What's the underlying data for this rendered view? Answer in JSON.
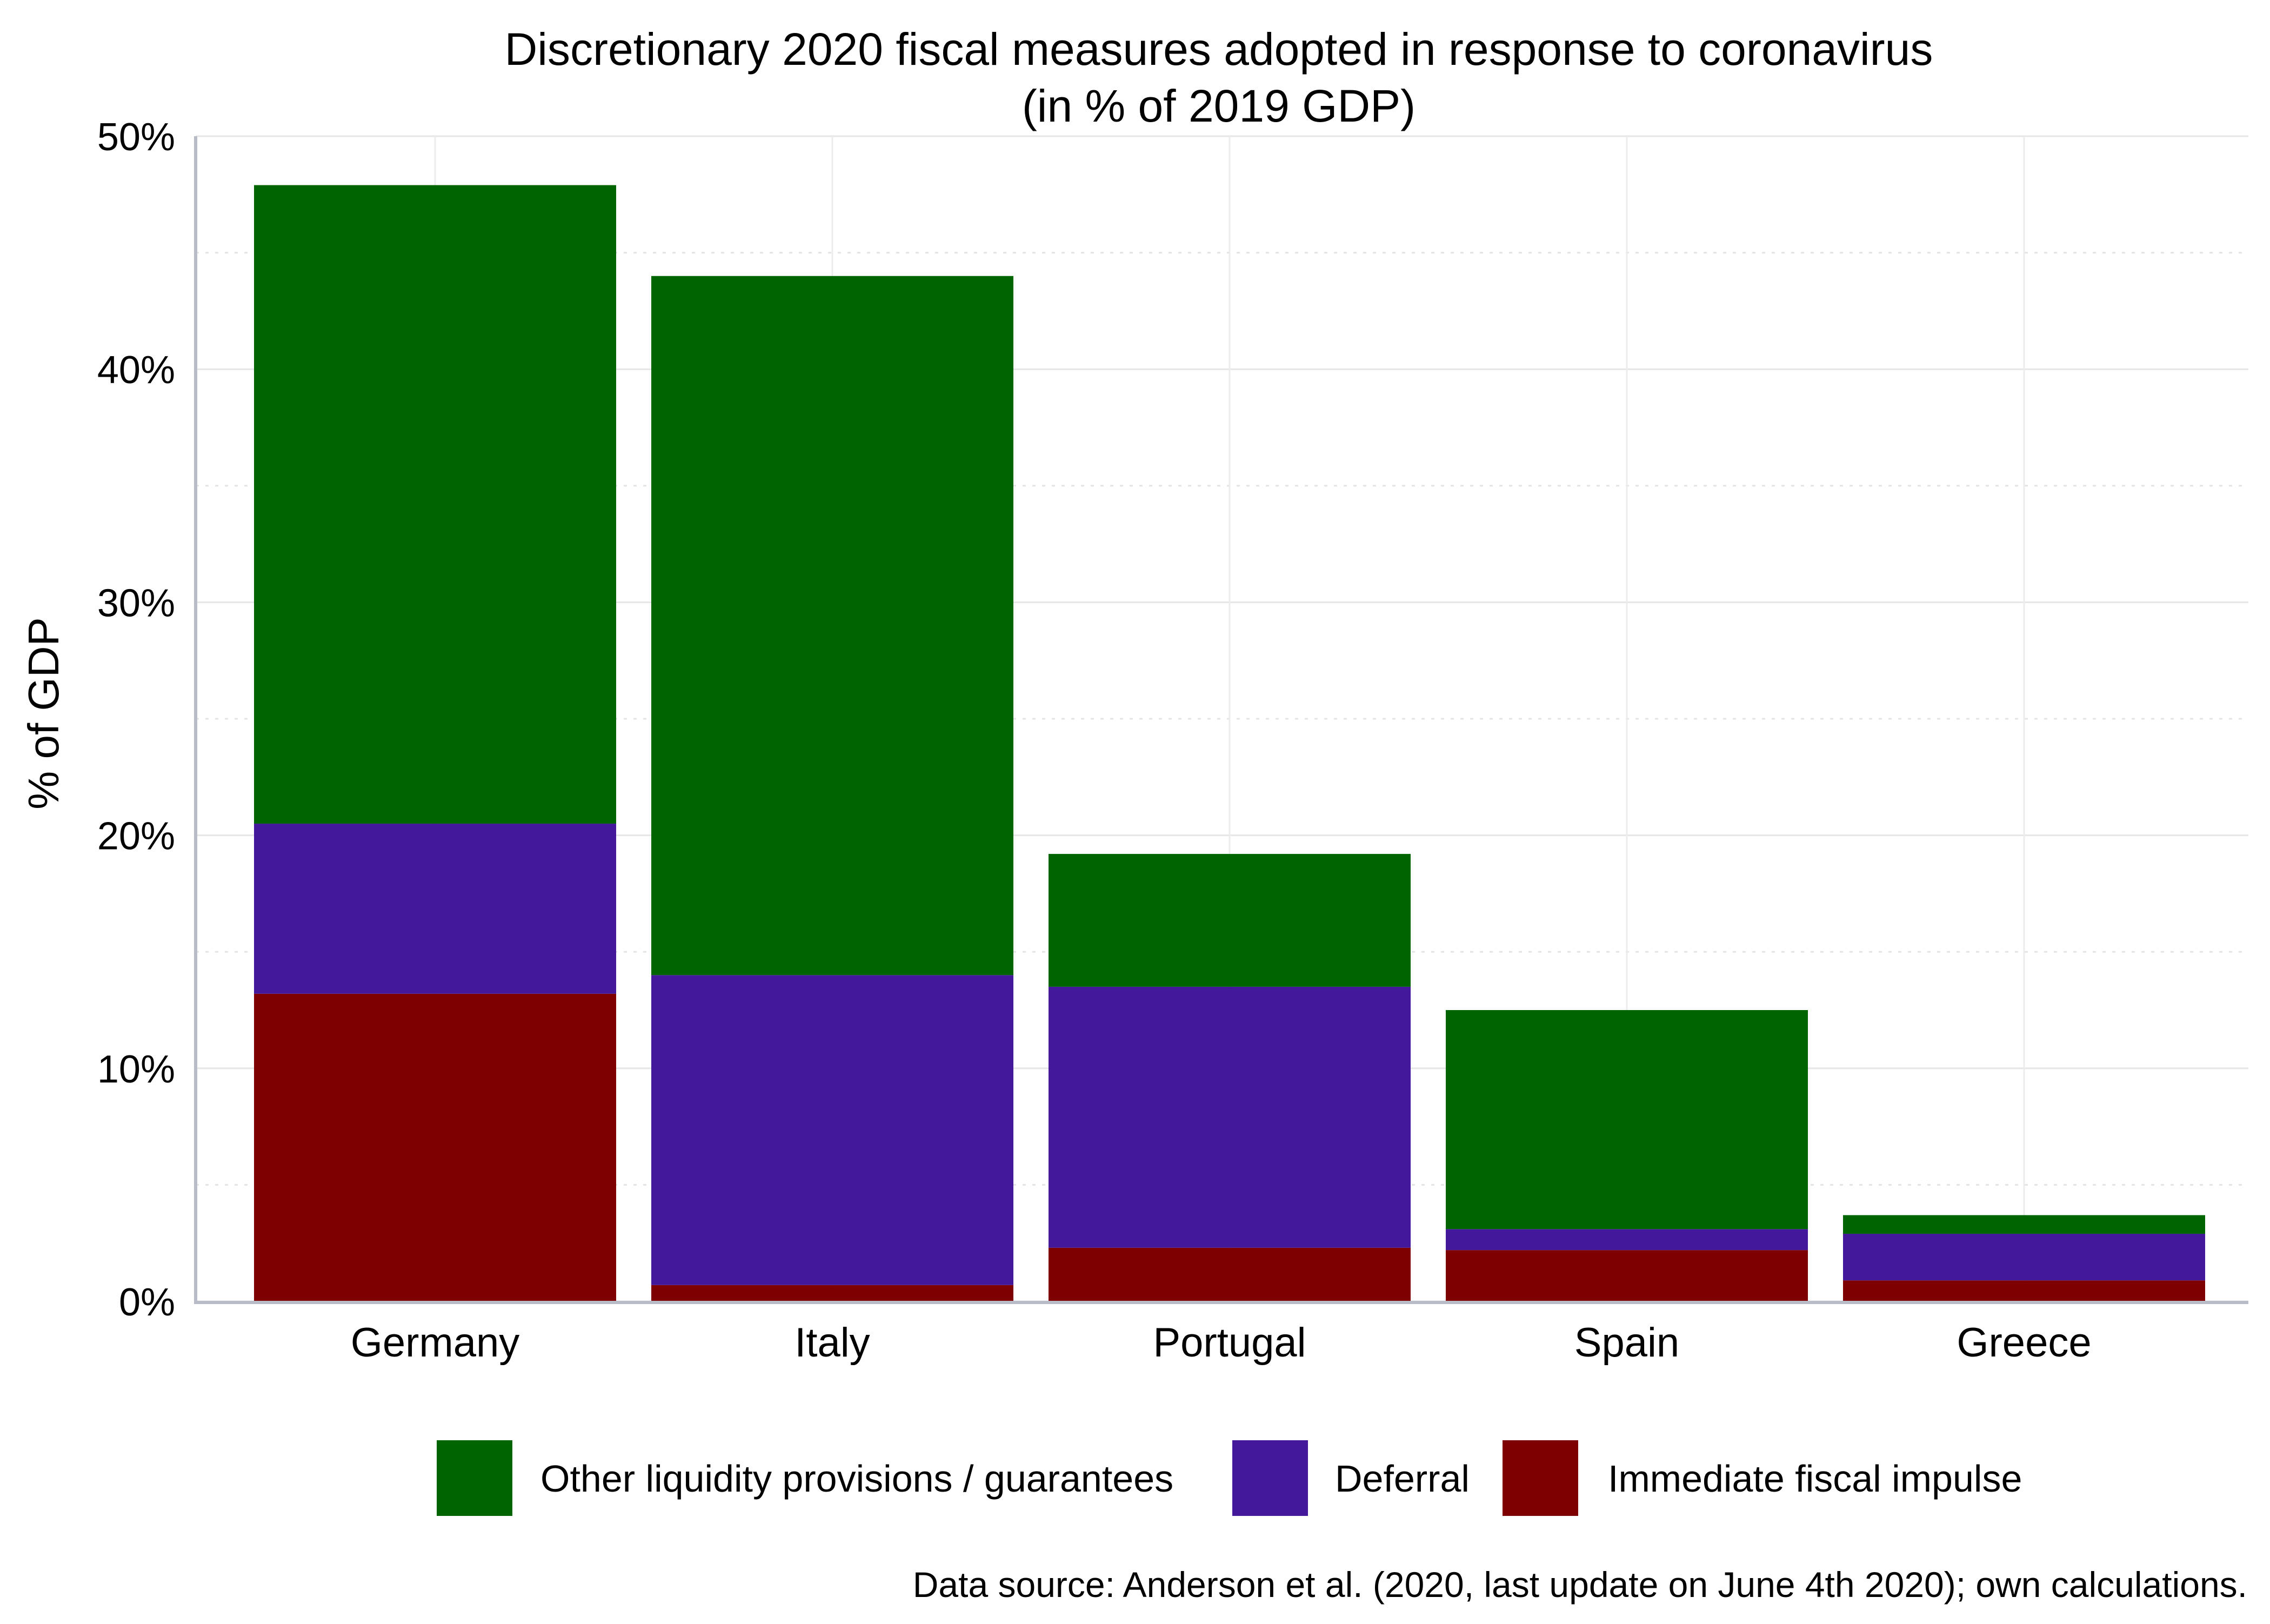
{
  "chart_data": {
    "type": "bar",
    "stacked": true,
    "title": "Discretionary 2020 fiscal measures adopted in response to coronavirus",
    "subtitle": "(in % of 2019 GDP)",
    "xlabel": "",
    "ylabel": "% of GDP",
    "ylim": [
      0,
      50
    ],
    "yticks": [
      "0%",
      "10%",
      "20%",
      "30%",
      "40%",
      "50%"
    ],
    "grid": true,
    "legend_position": "bottom",
    "categories": [
      "Germany",
      "Italy",
      "Portugal",
      "Spain",
      "Greece"
    ],
    "series": [
      {
        "name": "Immediate fiscal impulse",
        "color": "#7f0000",
        "values": [
          13.2,
          0.7,
          2.3,
          2.2,
          0.9
        ]
      },
      {
        "name": "Deferral",
        "color": "#43189b",
        "values": [
          7.3,
          13.3,
          11.2,
          0.9,
          2.0
        ]
      },
      {
        "name": "Other liquidity provisions / guarantees",
        "color": "#006400",
        "values": [
          27.4,
          30.0,
          5.7,
          9.4,
          0.8
        ]
      }
    ],
    "legend_order": [
      "Other liquidity provisions / guarantees",
      "Deferral",
      "Immediate fiscal impulse"
    ],
    "source_note": "Data source: Anderson et al. (2020, last update on June 4th 2020); own calculations."
  }
}
